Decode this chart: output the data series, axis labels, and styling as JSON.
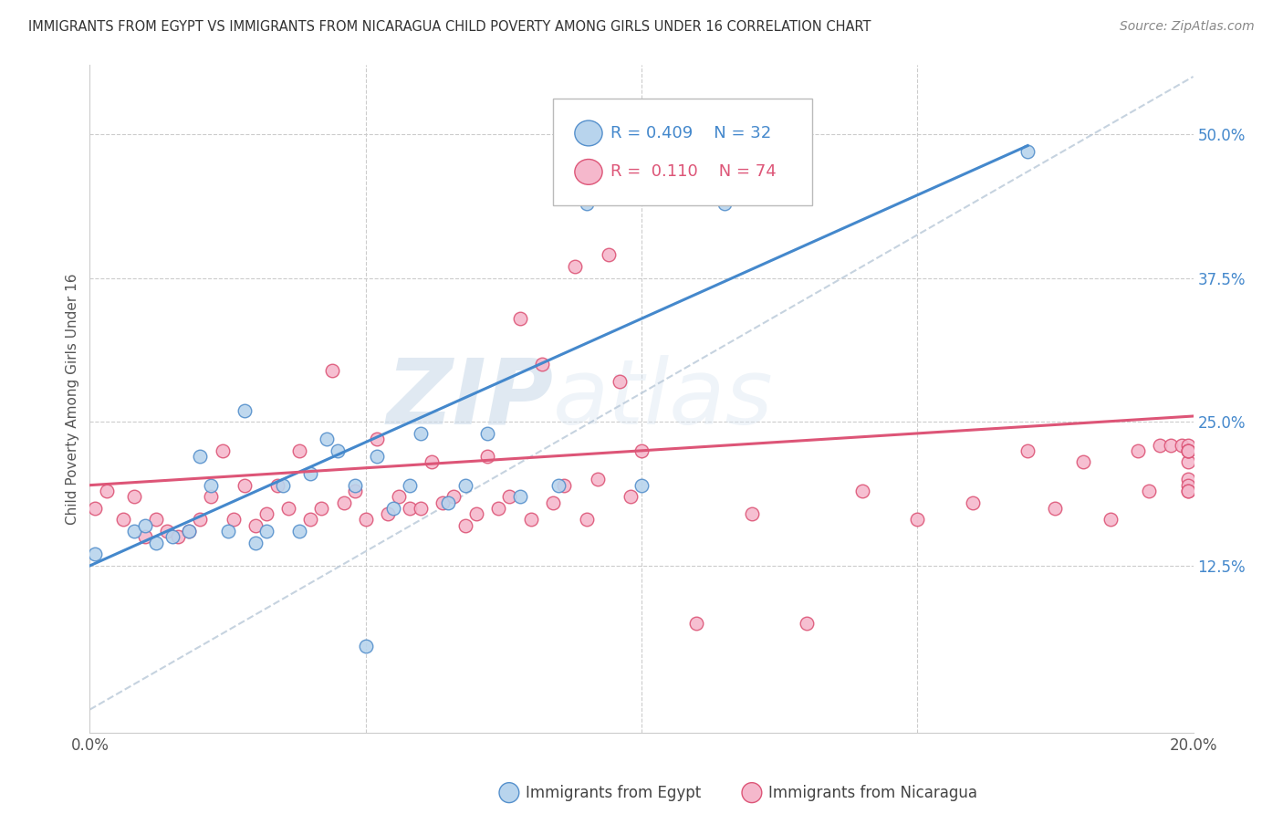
{
  "title": "IMMIGRANTS FROM EGYPT VS IMMIGRANTS FROM NICARAGUA CHILD POVERTY AMONG GIRLS UNDER 16 CORRELATION CHART",
  "source": "Source: ZipAtlas.com",
  "ylabel": "Child Poverty Among Girls Under 16",
  "xlim": [
    0.0,
    0.2
  ],
  "ylim": [
    -0.02,
    0.56
  ],
  "ytick_labels_right": [
    "12.5%",
    "25.0%",
    "37.5%",
    "50.0%"
  ],
  "ytick_vals_right": [
    0.125,
    0.25,
    0.375,
    0.5
  ],
  "egypt_color": "#b8d4ed",
  "nicaragua_color": "#f5b8cc",
  "egypt_edge_color": "#5590cc",
  "nicaragua_edge_color": "#dd5577",
  "egypt_line_color": "#4488cc",
  "nicaragua_line_color": "#dd5577",
  "diagonal_color": "#b8c8d8",
  "watermark_zip": "ZIP",
  "watermark_atlas": "atlas",
  "egypt_points_x": [
    0.001,
    0.008,
    0.01,
    0.012,
    0.015,
    0.018,
    0.02,
    0.022,
    0.025,
    0.028,
    0.03,
    0.032,
    0.035,
    0.038,
    0.04,
    0.043,
    0.045,
    0.048,
    0.05,
    0.052,
    0.055,
    0.058,
    0.06,
    0.065,
    0.068,
    0.072,
    0.078,
    0.085,
    0.09,
    0.1,
    0.115,
    0.17
  ],
  "egypt_points_y": [
    0.135,
    0.155,
    0.16,
    0.145,
    0.15,
    0.155,
    0.22,
    0.195,
    0.155,
    0.26,
    0.145,
    0.155,
    0.195,
    0.155,
    0.205,
    0.235,
    0.225,
    0.195,
    0.055,
    0.22,
    0.175,
    0.195,
    0.24,
    0.18,
    0.195,
    0.24,
    0.185,
    0.195,
    0.44,
    0.195,
    0.44,
    0.485
  ],
  "nicaragua_points_x": [
    0.001,
    0.003,
    0.006,
    0.008,
    0.01,
    0.012,
    0.014,
    0.016,
    0.018,
    0.02,
    0.022,
    0.024,
    0.026,
    0.028,
    0.03,
    0.032,
    0.034,
    0.036,
    0.038,
    0.04,
    0.042,
    0.044,
    0.046,
    0.048,
    0.05,
    0.052,
    0.054,
    0.056,
    0.058,
    0.06,
    0.062,
    0.064,
    0.066,
    0.068,
    0.07,
    0.072,
    0.074,
    0.076,
    0.078,
    0.08,
    0.082,
    0.084,
    0.086,
    0.088,
    0.09,
    0.092,
    0.094,
    0.096,
    0.098,
    0.1,
    0.11,
    0.12,
    0.13,
    0.14,
    0.15,
    0.16,
    0.17,
    0.175,
    0.18,
    0.185,
    0.19,
    0.192,
    0.194,
    0.196,
    0.198,
    0.199,
    0.199,
    0.199,
    0.199,
    0.199,
    0.199,
    0.199,
    0.199,
    0.199
  ],
  "nicaragua_points_y": [
    0.175,
    0.19,
    0.165,
    0.185,
    0.15,
    0.165,
    0.155,
    0.15,
    0.155,
    0.165,
    0.185,
    0.225,
    0.165,
    0.195,
    0.16,
    0.17,
    0.195,
    0.175,
    0.225,
    0.165,
    0.175,
    0.295,
    0.18,
    0.19,
    0.165,
    0.235,
    0.17,
    0.185,
    0.175,
    0.175,
    0.215,
    0.18,
    0.185,
    0.16,
    0.17,
    0.22,
    0.175,
    0.185,
    0.34,
    0.165,
    0.3,
    0.18,
    0.195,
    0.385,
    0.165,
    0.2,
    0.395,
    0.285,
    0.185,
    0.225,
    0.075,
    0.17,
    0.075,
    0.19,
    0.165,
    0.18,
    0.225,
    0.175,
    0.215,
    0.165,
    0.225,
    0.19,
    0.23,
    0.23,
    0.23,
    0.23,
    0.215,
    0.2,
    0.195,
    0.19,
    0.19,
    0.225,
    0.225,
    0.225
  ]
}
